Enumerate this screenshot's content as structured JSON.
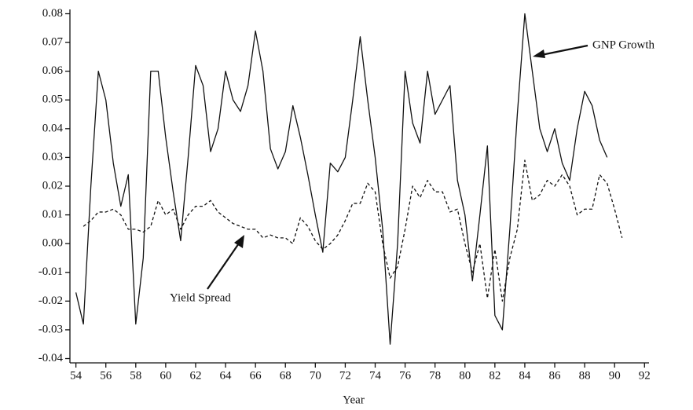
{
  "chart_data": {
    "type": "line",
    "x_label": "Year",
    "x": [
      54,
      54.5,
      55,
      55.5,
      56,
      56.5,
      57,
      57.5,
      58,
      58.5,
      59,
      59.5,
      60,
      60.5,
      61,
      61.5,
      62,
      62.5,
      63,
      63.5,
      64,
      64.5,
      65,
      65.5,
      66,
      66.5,
      67,
      67.5,
      68,
      68.5,
      69,
      69.5,
      70,
      70.5,
      71,
      71.5,
      72,
      72.5,
      73,
      73.5,
      74,
      74.5,
      75,
      75.5,
      76,
      76.5,
      77,
      77.5,
      78,
      78.5,
      79,
      79.5,
      80,
      80.5,
      81,
      81.5,
      82,
      82.5,
      83,
      83.5,
      84,
      84.5,
      85,
      85.5,
      86,
      86.5,
      87,
      87.5,
      88,
      88.5,
      89,
      89.5,
      90,
      90.5
    ],
    "series": [
      {
        "name": "GNP Growth",
        "color": "#111111",
        "dashed": false,
        "values": [
          -0.017,
          -0.028,
          0.02,
          0.06,
          0.05,
          0.028,
          0.013,
          0.024,
          -0.028,
          -0.005,
          0.06,
          0.06,
          0.037,
          0.018,
          0.001,
          0.03,
          0.062,
          0.055,
          0.032,
          0.04,
          0.06,
          0.05,
          0.046,
          0.055,
          0.074,
          0.06,
          0.033,
          0.026,
          0.032,
          0.048,
          0.037,
          0.024,
          0.01,
          -0.003,
          0.028,
          0.025,
          0.03,
          0.05,
          0.072,
          0.05,
          0.03,
          0.005,
          -0.035,
          0,
          0.06,
          0.042,
          0.035,
          0.06,
          0.045,
          0.05,
          0.055,
          0.022,
          0.01,
          -0.013,
          0.01,
          0.034,
          -0.025,
          -0.03,
          0.005,
          0.045,
          0.08,
          0.06,
          0.04,
          0.032,
          0.04,
          0.028,
          0.022,
          0.04,
          0.053,
          0.048,
          0.036,
          0.03,
          null,
          null
        ]
      },
      {
        "name": "Yield Spread",
        "color": "#111111",
        "dashed": true,
        "values": [
          null,
          0.006,
          0.008,
          0.011,
          0.011,
          0.012,
          0.01,
          0.005,
          0.005,
          0.004,
          0.006,
          0.015,
          0.01,
          0.012,
          0.005,
          0.01,
          0.013,
          0.013,
          0.015,
          0.011,
          0.009,
          0.007,
          0.006,
          0.005,
          0.005,
          0.002,
          0.003,
          0.002,
          0.002,
          0,
          0.009,
          0.006,
          0.001,
          -0.002,
          0,
          0.003,
          0.008,
          0.014,
          0.014,
          0.021,
          0.018,
          0,
          -0.012,
          -0.008,
          0.005,
          0.02,
          0.016,
          0.022,
          0.018,
          0.018,
          0.011,
          0.012,
          0,
          -0.01,
          0,
          -0.019,
          -0.002,
          -0.02,
          -0.005,
          0.005,
          0.029,
          0.015,
          0.017,
          0.022,
          0.02,
          0.024,
          0.02,
          0.01,
          0.012,
          0.012,
          0.024,
          0.021,
          0.012,
          0.002
        ]
      }
    ],
    "xlim": [
      53.6,
      92.3
    ],
    "xticks": [
      54,
      56,
      58,
      60,
      62,
      64,
      66,
      68,
      70,
      72,
      74,
      76,
      78,
      80,
      82,
      84,
      86,
      88,
      90,
      92
    ],
    "ylim": [
      -0.0415,
      0.0815
    ],
    "yticks": [
      0.08,
      0.07,
      0.06,
      0.05,
      0.04,
      0.03,
      0.02,
      0.01,
      {
        "value": 0,
        "label": "0.00"
      },
      -0.01,
      -0.02,
      -0.03,
      -0.04
    ],
    "grid": false
  }
}
